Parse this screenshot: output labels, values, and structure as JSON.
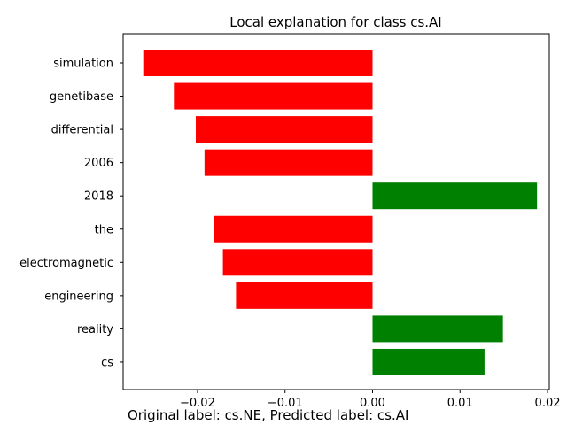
{
  "chart_data": {
    "type": "bar",
    "orientation": "horizontal",
    "title": "Local explanation for class cs.AI",
    "xlabel": "",
    "ylabel": "",
    "categories": [
      "simulation",
      "genetibase",
      "differential",
      "2006",
      "2018",
      "the",
      "electromagnetic",
      "engineering",
      "reality",
      "cs"
    ],
    "values": [
      -0.0262,
      -0.0227,
      -0.0202,
      -0.0192,
      0.0188,
      -0.0181,
      -0.0171,
      -0.0156,
      0.0149,
      0.0128
    ],
    "xlim": [
      -0.0285,
      0.0202
    ],
    "xticks": [
      -0.02,
      -0.01,
      0.0,
      0.01,
      0.02
    ],
    "xtick_labels": [
      "−0.02",
      "−0.01",
      "0.00",
      "0.01",
      "0.02"
    ],
    "colors": {
      "positive": "#008000",
      "negative": "#ff0000"
    },
    "grid": false
  },
  "caption": "Original label: cs.NE, Predicted label: cs.AI"
}
